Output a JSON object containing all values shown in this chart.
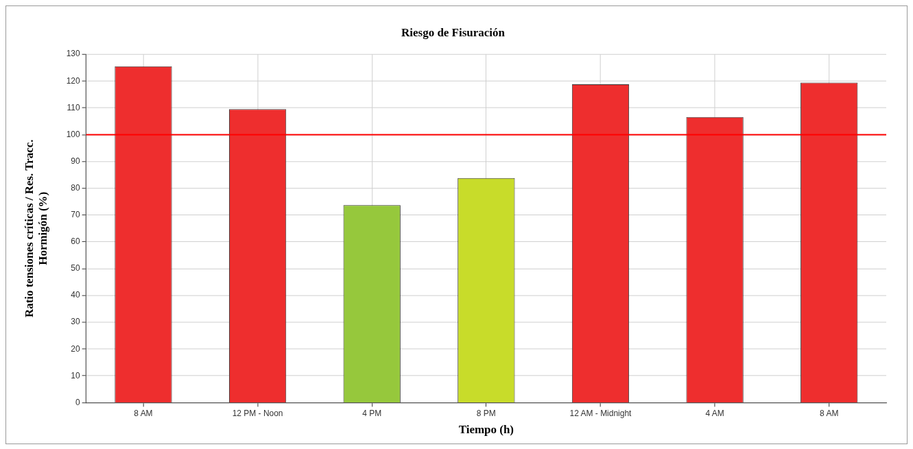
{
  "chart_data": {
    "type": "bar",
    "title": "Riesgo de Fisuración",
    "xlabel": "Tiempo (h)",
    "ylabel": "Ratio tensiones críticas / Res. Tracc. Hormigón (%)",
    "categories": [
      "8 AM",
      "12 PM - Noon",
      "4 PM",
      "8 PM",
      "12 AM - Midnight",
      "4 AM",
      "8 AM"
    ],
    "values": [
      125.5,
      109.5,
      73.7,
      83.8,
      118.8,
      106.6,
      119.4
    ],
    "colors": [
      "#ee2e2e",
      "#ee2e2e",
      "#96c83c",
      "#c8dc2a",
      "#ee2e2e",
      "#ee2e2e",
      "#ee2e2e"
    ],
    "ylim": [
      0,
      130
    ],
    "yticks": [
      0,
      10,
      20,
      30,
      40,
      50,
      60,
      70,
      80,
      90,
      100,
      110,
      120,
      130
    ],
    "grid": true,
    "ref_lines": [
      {
        "axis": "y",
        "value": 100,
        "color": "#ff0000"
      }
    ]
  }
}
